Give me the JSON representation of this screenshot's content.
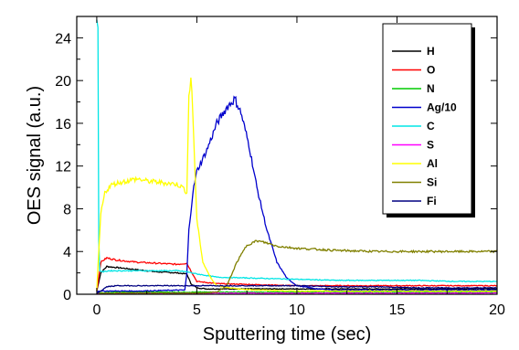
{
  "chart_data": {
    "type": "line",
    "xlabel": "Sputtering time (sec)",
    "ylabel": "OES signal (a.u.)",
    "xlim": [
      -1,
      20
    ],
    "ylim": [
      0,
      26
    ],
    "x_ticks": [
      0,
      5,
      10,
      15,
      20
    ],
    "y_ticks": [
      0,
      4,
      8,
      12,
      16,
      20,
      24
    ],
    "legend_position": "top-right",
    "series": [
      {
        "name": "H",
        "color": "#000000",
        "x": [
          0,
          0.2,
          0.5,
          1,
          2,
          3,
          4,
          4.5,
          4.7,
          5,
          5.5,
          6,
          8,
          10,
          12,
          14,
          16,
          18,
          20
        ],
        "y": [
          0.3,
          2.0,
          2.6,
          2.5,
          2.3,
          2.1,
          2.0,
          1.9,
          1.0,
          0.6,
          0.5,
          0.5,
          0.5,
          0.5,
          0.5,
          0.5,
          0.5,
          0.5,
          0.5
        ]
      },
      {
        "name": "O",
        "color": "#ff0000",
        "x": [
          0,
          0.2,
          0.5,
          1,
          2,
          3,
          4,
          4.5,
          4.7,
          5,
          6,
          8,
          10,
          12,
          14,
          16,
          18,
          20
        ],
        "y": [
          0.3,
          3.0,
          3.4,
          3.2,
          3.0,
          2.9,
          2.8,
          2.9,
          2.2,
          1.2,
          1.0,
          0.9,
          0.8,
          0.8,
          0.8,
          0.8,
          0.8,
          0.8
        ]
      },
      {
        "name": "N",
        "color": "#00cc00",
        "x": [
          0,
          1,
          2,
          3,
          4,
          5,
          6,
          7,
          8,
          10,
          12,
          14,
          16,
          18,
          20
        ],
        "y": [
          0.1,
          0.2,
          0.2,
          0.2,
          0.2,
          0.2,
          0.2,
          0.2,
          0.2,
          0.2,
          0.2,
          0.2,
          0.2,
          0.2,
          0.2
        ]
      },
      {
        "name": "Ag/10",
        "color": "#0000cc",
        "x": [
          0,
          2,
          4.4,
          4.5,
          4.6,
          4.8,
          5.0,
          5.5,
          6.0,
          6.5,
          6.9,
          7.2,
          7.6,
          8.0,
          8.5,
          9.0,
          9.5,
          10,
          11,
          12,
          14,
          16,
          18,
          20
        ],
        "y": [
          0.3,
          0.3,
          0.4,
          2.0,
          6.0,
          9.5,
          11.5,
          13.5,
          16.0,
          17.5,
          18.3,
          17.0,
          14.0,
          10.0,
          6.0,
          3.0,
          1.5,
          0.8,
          0.5,
          0.4,
          0.4,
          0.4,
          0.4,
          0.4
        ]
      },
      {
        "name": "C",
        "color": "#00e5e5",
        "x": [
          0,
          0.06,
          0.1,
          0.15,
          0.3,
          0.6,
          1,
          2,
          3,
          4,
          4.5,
          5,
          6,
          8,
          10,
          12,
          14,
          16,
          18,
          20
        ],
        "y": [
          25.5,
          25.5,
          5.0,
          2.2,
          2.1,
          2.2,
          2.2,
          2.2,
          2.2,
          2.2,
          2.1,
          1.9,
          1.6,
          1.5,
          1.4,
          1.3,
          1.3,
          1.3,
          1.2,
          1.2
        ]
      },
      {
        "name": "S",
        "color": "#ff00ff",
        "x": [
          0,
          2,
          4,
          6,
          8,
          10,
          12,
          14,
          16,
          18,
          20
        ],
        "y": [
          0.05,
          0.1,
          0.1,
          0.1,
          0.1,
          0.1,
          0.1,
          0.1,
          0.1,
          0.1,
          0.1
        ]
      },
      {
        "name": "Al",
        "color": "#ffff00",
        "x": [
          0,
          0.1,
          0.2,
          0.4,
          0.7,
          1,
          1.5,
          2,
          2.5,
          3,
          3.5,
          4,
          4.3,
          4.5,
          4.6,
          4.7,
          4.8,
          4.9,
          5.0,
          5.3,
          5.7,
          6,
          7,
          8,
          10,
          12,
          14,
          16,
          18,
          20
        ],
        "y": [
          0.3,
          4.0,
          7.5,
          9.5,
          10.2,
          10.4,
          10.6,
          10.8,
          10.6,
          10.5,
          10.4,
          10.3,
          10.0,
          9.5,
          18.5,
          20.3,
          17.0,
          12.0,
          7.0,
          3.0,
          1.5,
          0.8,
          0.5,
          0.4,
          0.3,
          0.3,
          0.3,
          0.3,
          0.3,
          0.3
        ]
      },
      {
        "name": "Si",
        "color": "#808000",
        "x": [
          0,
          2,
          4,
          5,
          6,
          6.5,
          7,
          7.5,
          8,
          8.5,
          9,
          10,
          12,
          14,
          16,
          18,
          20
        ],
        "y": [
          0.1,
          0.1,
          0.1,
          0.1,
          0.2,
          0.8,
          3.0,
          4.6,
          5.0,
          4.8,
          4.5,
          4.3,
          4.1,
          4.0,
          4.0,
          4.0,
          4.0
        ]
      },
      {
        "name": "Fi",
        "color": "#000080",
        "x": [
          0,
          0.2,
          0.5,
          1,
          2,
          3,
          4,
          5,
          6,
          8,
          10,
          12,
          14,
          16,
          18,
          20
        ],
        "y": [
          0.1,
          0.3,
          0.7,
          0.8,
          0.8,
          0.8,
          0.8,
          0.8,
          0.8,
          0.8,
          0.8,
          0.7,
          0.7,
          0.6,
          0.6,
          0.6
        ]
      }
    ]
  }
}
